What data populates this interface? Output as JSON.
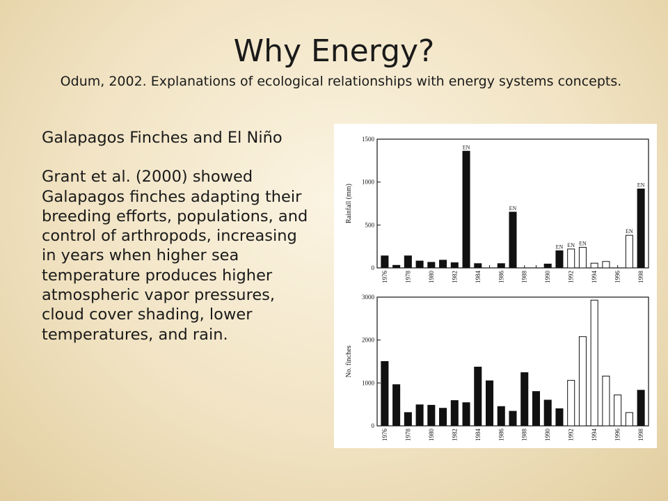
{
  "slide": {
    "title": "Why Energy?",
    "subtitle": "Odum, 2002.  Explanations of ecological relationships with energy systems concepts.",
    "heading": "Galapagos Finches and El Niño",
    "body": "Grant et al. (2000) showed Galapagos finches adapting their breeding efforts, populations, and control of arthropods, increasing in years when higher sea temperature produces higher atmospheric vapor pressures, cloud cover shading, lower temperatures, and rain."
  },
  "colors": {
    "filled_bar": "#111111",
    "open_bar": "#ffffff",
    "axis": "#111111"
  },
  "chart_data": [
    {
      "type": "bar",
      "ylabel": "Rainfall (mm)",
      "ylim": [
        0,
        1500
      ],
      "yticks": [
        0,
        500,
        1000,
        1500
      ],
      "xticks": [
        "1976",
        "1978",
        "1980",
        "1982",
        "1984",
        "1986",
        "1988",
        "1990",
        "1992",
        "1994",
        "1996",
        "1998"
      ],
      "categories": [
        1976,
        1977,
        1978,
        1979,
        1980,
        1981,
        1982,
        1983,
        1984,
        1985,
        1986,
        1987,
        1988,
        1989,
        1990,
        1991,
        1992,
        1993,
        1994,
        1995,
        1996,
        1997,
        1998
      ],
      "values": [
        140,
        30,
        140,
        80,
        65,
        90,
        60,
        1360,
        50,
        0,
        50,
        650,
        0,
        0,
        45,
        200,
        220,
        240,
        55,
        75,
        0,
        380,
        920
      ],
      "open": [
        false,
        false,
        false,
        false,
        false,
        false,
        false,
        false,
        false,
        false,
        false,
        false,
        false,
        false,
        false,
        false,
        true,
        true,
        true,
        true,
        false,
        true,
        false
      ],
      "annotations": [
        {
          "year": 1983,
          "text": "EN"
        },
        {
          "year": 1987,
          "text": "EN"
        },
        {
          "year": 1991,
          "text": "EN"
        },
        {
          "year": 1992,
          "text": "EN"
        },
        {
          "year": 1993,
          "text": "EN"
        },
        {
          "year": 1997,
          "text": "EN"
        },
        {
          "year": 1998,
          "text": "EN"
        }
      ]
    },
    {
      "type": "bar",
      "ylabel": "No. finches",
      "ylim": [
        0,
        3000
      ],
      "yticks": [
        0,
        1000,
        2000,
        3000
      ],
      "xticks": [
        "1976",
        "1978",
        "1980",
        "1982",
        "1984",
        "1986",
        "1988",
        "1990",
        "1992",
        "1994",
        "1996",
        "1998"
      ],
      "categories": [
        1976,
        1977,
        1978,
        1979,
        1980,
        1981,
        1982,
        1983,
        1984,
        1985,
        1986,
        1987,
        1988,
        1989,
        1990,
        1991,
        1992,
        1993,
        1994,
        1995,
        1996,
        1997,
        1998
      ],
      "values": [
        1500,
        960,
        310,
        490,
        480,
        410,
        590,
        540,
        1370,
        1050,
        450,
        340,
        1240,
        800,
        600,
        400,
        1060,
        2080,
        2930,
        1160,
        720,
        310,
        830
      ],
      "open": [
        false,
        false,
        false,
        false,
        false,
        false,
        false,
        false,
        false,
        false,
        false,
        false,
        false,
        false,
        false,
        false,
        true,
        true,
        true,
        true,
        true,
        true,
        false
      ],
      "annotations": []
    }
  ]
}
